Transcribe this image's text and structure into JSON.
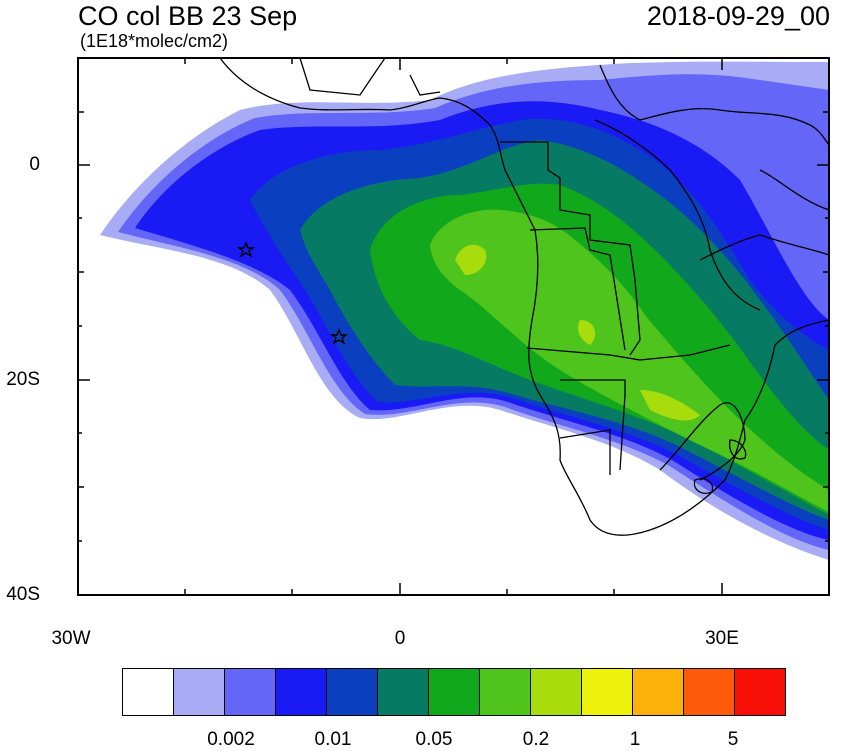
{
  "title": "CO col BB 23 Sep",
  "units": "(1E18*molec/cm2)",
  "datetime": "2018-09-29_00",
  "lat_labels": [
    "0",
    "20S",
    "40S"
  ],
  "lon_labels": [
    "30W",
    "0",
    "30E"
  ],
  "colorbar": {
    "colors": [
      "#ffffff",
      "#a8acf5",
      "#6466f8",
      "#1a1af5",
      "#0a3fc0",
      "#067a62",
      "#12a81c",
      "#4ec41c",
      "#a8dc0c",
      "#ecf00a",
      "#fcb00a",
      "#fc5a08",
      "#f81008"
    ],
    "labels": [
      "0.002",
      "0.01",
      "0.05",
      "0.2",
      "1",
      "5"
    ]
  },
  "markers": [
    {
      "name": "star-marker-1",
      "lon": -14.3,
      "lat": -8.0
    },
    {
      "name": "star-marker-2",
      "lon": -5.7,
      "lat": -16.0
    }
  ],
  "map_extent": {
    "lon_min": -30,
    "lon_max": 40,
    "lat_min": -40,
    "lat_max": 10
  }
}
